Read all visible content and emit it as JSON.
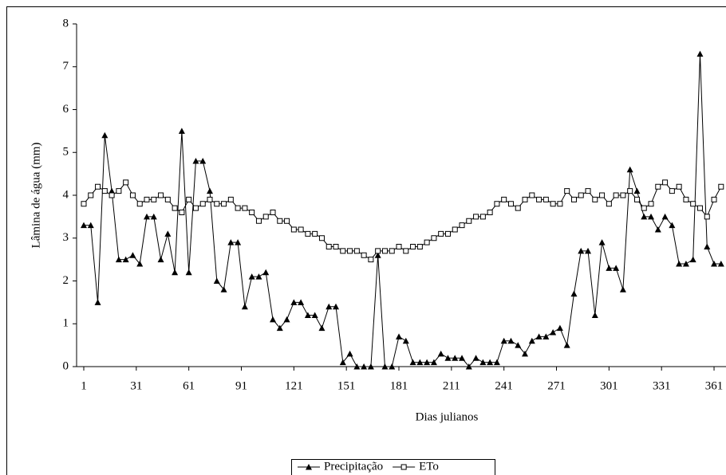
{
  "chart_data": {
    "type": "line",
    "xlabel": "Dias julianos",
    "ylabel": "Lâmina de água (mm)",
    "x": [
      1,
      5,
      9,
      13,
      17,
      21,
      25,
      29,
      33,
      37,
      41,
      45,
      49,
      53,
      57,
      61,
      65,
      69,
      73,
      77,
      81,
      85,
      89,
      93,
      97,
      101,
      105,
      109,
      113,
      117,
      121,
      125,
      129,
      133,
      137,
      141,
      145,
      149,
      153,
      157,
      161,
      165,
      169,
      173,
      177,
      181,
      185,
      189,
      193,
      197,
      201,
      205,
      209,
      213,
      217,
      221,
      225,
      229,
      233,
      237,
      241,
      245,
      249,
      253,
      257,
      261,
      265,
      269,
      273,
      277,
      281,
      285,
      289,
      293,
      297,
      301,
      305,
      309,
      313,
      317,
      321,
      325,
      329,
      333,
      337,
      341,
      345,
      349,
      353,
      357,
      361,
      365
    ],
    "series": [
      {
        "name": "Precipitação",
        "color": "#000000",
        "marker": "triangle",
        "values": [
          3.3,
          3.3,
          1.5,
          5.4,
          4.1,
          2.5,
          2.5,
          2.6,
          2.4,
          3.5,
          3.5,
          2.5,
          3.1,
          2.2,
          5.5,
          2.2,
          4.8,
          4.8,
          4.1,
          2.0,
          1.8,
          2.9,
          2.9,
          1.4,
          2.1,
          2.1,
          2.2,
          1.1,
          0.9,
          1.1,
          1.5,
          1.5,
          1.2,
          1.2,
          0.9,
          1.4,
          1.4,
          0.1,
          0.3,
          0,
          0,
          0,
          2.6,
          0,
          0,
          0.7,
          0.6,
          0.1,
          0.1,
          0.1,
          0.1,
          0.3,
          0.2,
          0.2,
          0.2,
          0,
          0.2,
          0.1,
          0.1,
          0.1,
          0.6,
          0.6,
          0.5,
          0.3,
          0.6,
          0.7,
          0.7,
          0.8,
          0.9,
          0.5,
          1.7,
          2.7,
          2.7,
          1.2,
          2.9,
          2.3,
          2.3,
          1.8,
          4.6,
          4.1,
          3.5,
          3.5,
          3.2,
          3.5,
          3.3,
          2.4,
          2.4,
          2.5,
          7.3,
          2.8,
          2.4,
          2.4
        ]
      },
      {
        "name": "ETo",
        "color": "#000000",
        "marker": "square",
        "values": [
          3.8,
          4.0,
          4.2,
          4.1,
          4.0,
          4.1,
          4.3,
          4.0,
          3.8,
          3.9,
          3.9,
          4.0,
          3.9,
          3.7,
          3.6,
          3.9,
          3.7,
          3.8,
          3.9,
          3.8,
          3.8,
          3.9,
          3.7,
          3.7,
          3.6,
          3.4,
          3.5,
          3.6,
          3.4,
          3.4,
          3.2,
          3.2,
          3.1,
          3.1,
          3.0,
          2.8,
          2.8,
          2.7,
          2.7,
          2.7,
          2.6,
          2.5,
          2.7,
          2.7,
          2.7,
          2.8,
          2.7,
          2.8,
          2.8,
          2.9,
          3.0,
          3.1,
          3.1,
          3.2,
          3.3,
          3.4,
          3.5,
          3.5,
          3.6,
          3.8,
          3.9,
          3.8,
          3.7,
          3.9,
          4.0,
          3.9,
          3.9,
          3.8,
          3.8,
          4.1,
          3.9,
          4.0,
          4.1,
          3.9,
          4.0,
          3.8,
          4.0,
          4.0,
          4.1,
          3.9,
          3.7,
          3.8,
          4.2,
          4.3,
          4.1,
          4.2,
          3.9,
          3.8,
          3.7,
          3.5,
          3.9,
          4.2
        ]
      }
    ],
    "xlim": [
      1,
      366
    ],
    "xticks": [
      1,
      31,
      61,
      91,
      121,
      151,
      181,
      211,
      241,
      271,
      301,
      331,
      361
    ],
    "ylim": [
      0,
      8
    ],
    "yticks": [
      0,
      1,
      2,
      3,
      4,
      5,
      6,
      7,
      8
    ],
    "grid": false,
    "legend": "bottom"
  }
}
